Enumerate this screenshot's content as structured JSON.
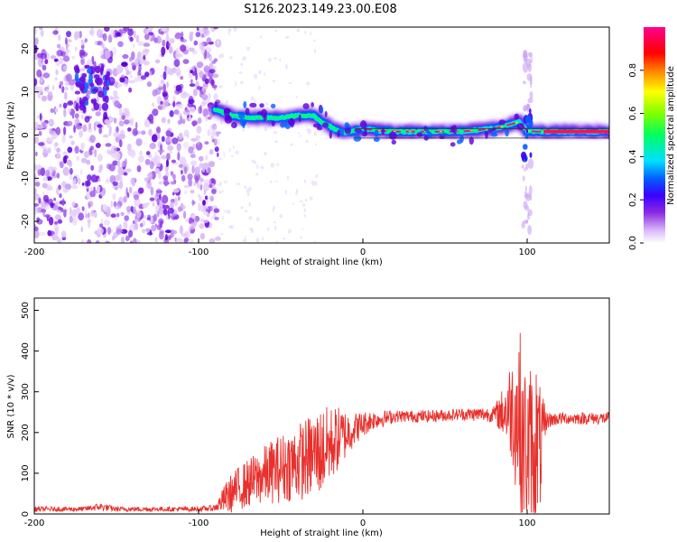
{
  "title": "S126.2023.149.23.00.E08",
  "chart_data": [
    {
      "type": "heatmap",
      "xlabel": "Height of straight line (km)",
      "ylabel": "Frequency (Hz)",
      "xlim": [
        -200,
        150
      ],
      "ylim": [
        -25,
        25
      ],
      "xticks": [
        -200,
        -100,
        0,
        100
      ],
      "yticks": [
        -20,
        -10,
        0,
        10,
        20
      ],
      "colorbar": {
        "label": "Normalized spectral amplitude",
        "range": [
          0,
          1
        ],
        "ticks": [
          "0.0",
          "0.2",
          "0.4",
          "0.6",
          "0.8"
        ],
        "colors": [
          "#ffffff",
          "#d8b6f8",
          "#8a2be2",
          "#3c00ff",
          "#0060ff",
          "#00e0ff",
          "#00ff60",
          "#80ff00",
          "#ffff00",
          "#ff8000",
          "#ff0000",
          "#ff0090"
        ]
      },
      "ridge": {
        "x": [
          -90,
          -80,
          -70,
          -60,
          -50,
          -40,
          -30,
          -25,
          -20,
          -15,
          -10,
          -5,
          0,
          10,
          20,
          40,
          60,
          80,
          90,
          95,
          100,
          105,
          110,
          130,
          150
        ],
        "freq": [
          6,
          4.5,
          4,
          4,
          4,
          4.5,
          4.5,
          3,
          2,
          1,
          0.5,
          1,
          1.5,
          1,
          0.8,
          0.8,
          0.8,
          1.5,
          2.5,
          3,
          1,
          0.8,
          0.8,
          0.8,
          0.8
        ]
      },
      "reference_line_hz": 1.5,
      "burst": {
        "x": 100,
        "freq_range": [
          -22,
          20
        ]
      }
    },
    {
      "type": "line",
      "xlabel": "Height of straight line (km)",
      "ylabel": "SNR (10 * v/v)",
      "xlim": [
        -200,
        150
      ],
      "ylim": [
        0,
        530
      ],
      "xticks": [
        -200,
        -100,
        0,
        100
      ],
      "yticks": [
        0,
        100,
        200,
        300,
        400,
        500
      ],
      "color": "#e8302c",
      "envelope": {
        "x": [
          -200,
          -170,
          -160,
          -150,
          -100,
          -90,
          -82,
          -75,
          -65,
          -55,
          -45,
          -35,
          -25,
          -15,
          -5,
          5,
          20,
          40,
          60,
          80,
          85,
          90,
          95,
          100,
          105,
          108,
          112,
          120,
          150
        ],
        "base": [
          12,
          12,
          18,
          12,
          12,
          15,
          45,
          65,
          85,
          105,
          120,
          135,
          155,
          185,
          210,
          230,
          240,
          240,
          245,
          245,
          250,
          260,
          240,
          150,
          180,
          160,
          230,
          235,
          235
        ],
        "amp": [
          6,
          6,
          10,
          6,
          6,
          8,
          45,
          55,
          65,
          80,
          90,
          100,
          110,
          80,
          40,
          25,
          15,
          15,
          15,
          20,
          60,
          120,
          230,
          200,
          220,
          150,
          20,
          15,
          15
        ]
      }
    }
  ]
}
